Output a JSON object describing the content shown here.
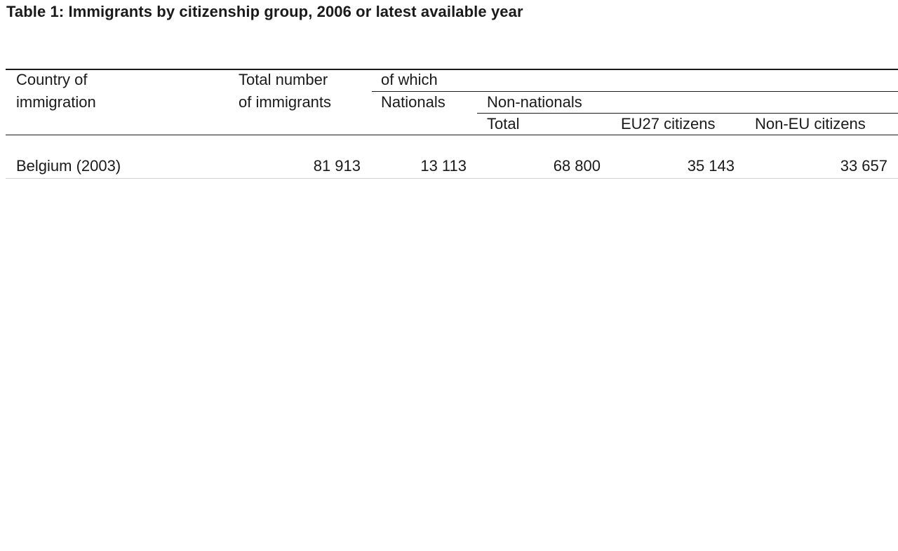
{
  "title": "Table 1: Immigrants by citizenship group, 2006 or latest available year",
  "headers": {
    "country_line1": "Country of",
    "country_line2": "immigration",
    "total_line1": "Total number",
    "total_line2": "of immigrants",
    "of_which": "of which",
    "nationals": "Nationals",
    "non_nationals": "Non-nationals",
    "nn_total": "Total",
    "eu27": "EU27 citizens",
    "non_eu": "Non-EU citizens"
  },
  "rows": [
    {
      "country": "Belgium (2003)",
      "total": "81 913",
      "nationals": "13 113",
      "nn_total": "68 800",
      "eu27": "35 143",
      "non_eu": "33 657"
    }
  ]
}
